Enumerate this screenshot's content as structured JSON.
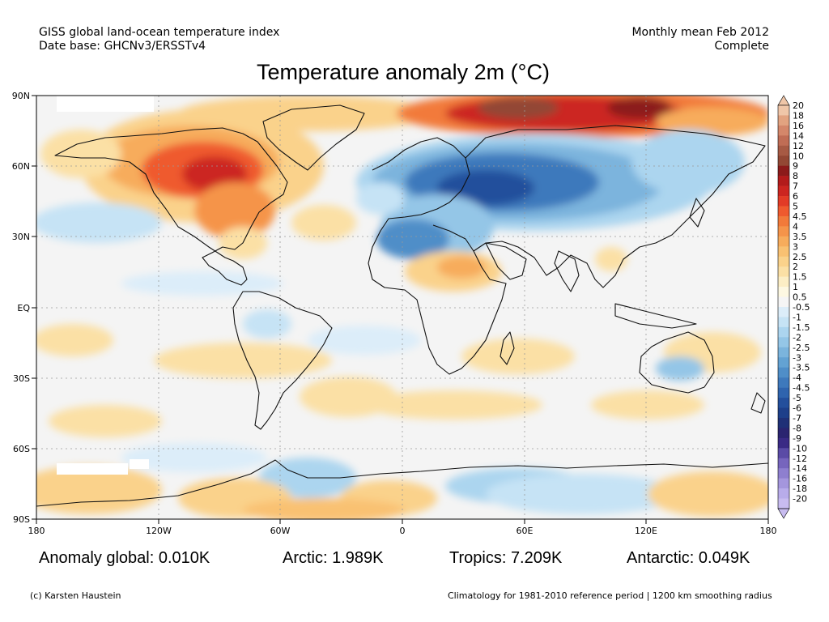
{
  "header": {
    "line1_left": "GISS global land-ocean temperature index",
    "line2_left": "Date base: GHCNv3/ERSSTv4",
    "line1_right": "Monthly mean Feb 2012",
    "line2_right": "Complete"
  },
  "title": "Temperature anomaly 2m (°C)",
  "axes": {
    "lat_labels": [
      "90N",
      "60N",
      "30N",
      "EQ",
      "30S",
      "60S",
      "90S"
    ],
    "lon_labels": [
      "180",
      "120W",
      "60W",
      "0",
      "60E",
      "120E",
      "180"
    ]
  },
  "colorbar": {
    "labels": [
      "20",
      "18",
      "16",
      "14",
      "12",
      "10",
      "9",
      "8",
      "7",
      "6",
      "5",
      "4.5",
      "4",
      "3.5",
      "3",
      "2.5",
      "2",
      "1.5",
      "1",
      "0.5",
      "-0.5",
      "-1",
      "-1.5",
      "-2",
      "-2.5",
      "-3",
      "-3.5",
      "-4",
      "-4.5",
      "-5",
      "-6",
      "-7",
      "-8",
      "-9",
      "-10",
      "-12",
      "-14",
      "-16",
      "-18",
      "-20"
    ],
    "colors": [
      "#efc6a8",
      "#e2a380",
      "#d4876a",
      "#c06d55",
      "#a75a44",
      "#934734",
      "#8c1a1a",
      "#b31b1b",
      "#cc2520",
      "#e23b26",
      "#ef5a2e",
      "#f27a3a",
      "#f5944a",
      "#f7ac5c",
      "#f9c172",
      "#fad28b",
      "#fbe0a5",
      "#fceec5",
      "#fdf8e2",
      "#f5f5f5",
      "#dcedf9",
      "#c6e3f5",
      "#acd5ef",
      "#94c6e7",
      "#7bb4dd",
      "#63a2d3",
      "#4f8ec8",
      "#3e79bc",
      "#2f64ae",
      "#234f9c",
      "#1d3f8a",
      "#1f3077",
      "#2a2470",
      "#3a2a85",
      "#5a4ba6",
      "#7665bd",
      "#8e7fcf",
      "#a496dd",
      "#b8acea",
      "#c8bcf0"
    ]
  },
  "stats": {
    "global": "Anomaly global: 0.010K",
    "arctic": "Arctic: 1.989K",
    "tropics": "Tropics: 7.209K",
    "antarctic": "Antarctic: 0.049K"
  },
  "footer": {
    "left": "(c) Karsten Haustein",
    "right": "Climatology for 1981-2010 reference period | 1200 km smoothing radius"
  }
}
